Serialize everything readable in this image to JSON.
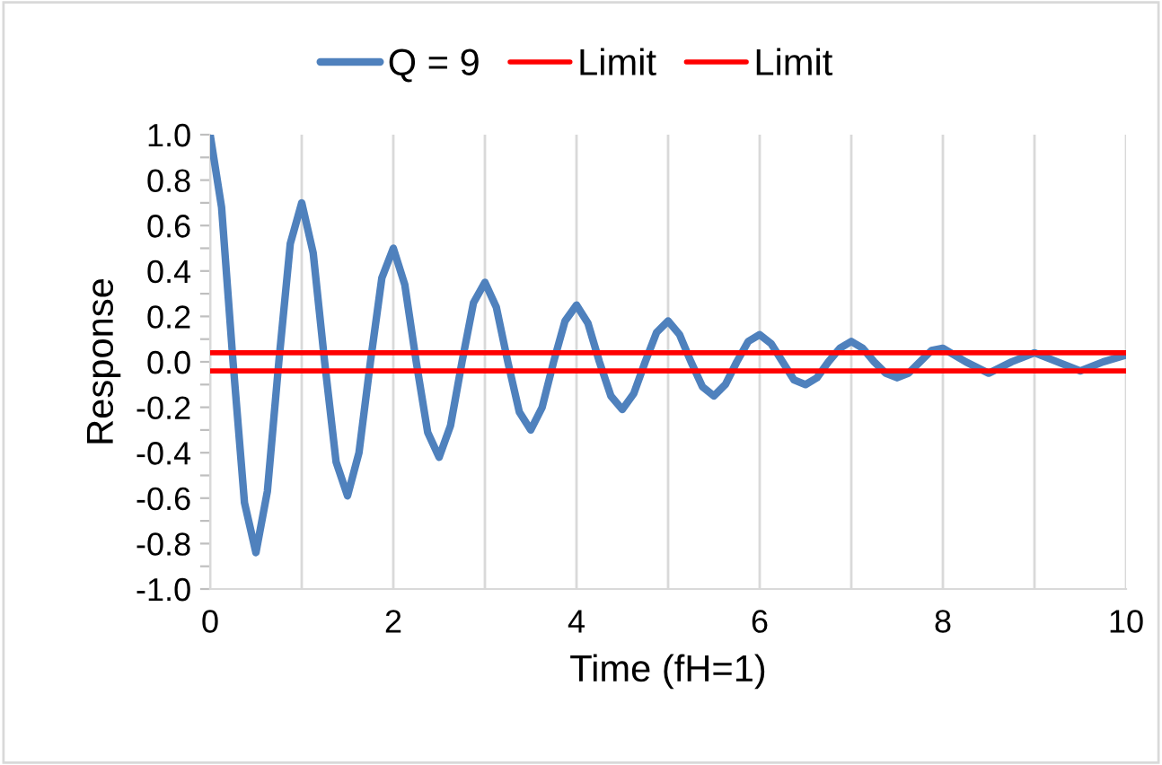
{
  "chart_data": {
    "type": "line",
    "xlabel": "Time (fH=1)",
    "ylabel": "Response",
    "xlim": [
      0,
      10
    ],
    "ylim": [
      -1.0,
      1.0
    ],
    "xticks": [
      0,
      {
        "value": 1,
        "label": null
      },
      2,
      {
        "value": 3,
        "label": null
      },
      4,
      {
        "value": 5,
        "label": null
      },
      6,
      {
        "value": 7,
        "label": null
      },
      8,
      {
        "value": 9,
        "label": null
      },
      10
    ],
    "yticks": [
      {
        "value": -1.0,
        "label": "-1.0"
      },
      {
        "value": -0.9,
        "label": null
      },
      {
        "value": -0.8,
        "label": "-0.8"
      },
      {
        "value": -0.7,
        "label": null
      },
      {
        "value": -0.6,
        "label": "-0.6"
      },
      {
        "value": -0.5,
        "label": null
      },
      {
        "value": -0.4,
        "label": "-0.4"
      },
      {
        "value": -0.3,
        "label": null
      },
      {
        "value": -0.2,
        "label": "-0.2"
      },
      {
        "value": -0.1,
        "label": null
      },
      {
        "value": 0.0,
        "label": "0.0"
      },
      {
        "value": 0.1,
        "label": null
      },
      {
        "value": 0.2,
        "label": "0.2"
      },
      {
        "value": 0.3,
        "label": null
      },
      {
        "value": 0.4,
        "label": "0.4"
      },
      {
        "value": 0.5,
        "label": null
      },
      {
        "value": 0.6,
        "label": "0.6"
      },
      {
        "value": 0.7,
        "label": null
      },
      {
        "value": 0.8,
        "label": "0.8"
      },
      {
        "value": 0.9,
        "label": null
      },
      {
        "value": 1.0,
        "label": "1.0"
      }
    ],
    "grid": "x",
    "legend": "top",
    "marker": "none",
    "line_style": "solid",
    "series": [
      {
        "name": "Q = 9",
        "color": "#4f81bd",
        "x": [
          0,
          0.125,
          0.25,
          0.375,
          0.5,
          0.625,
          0.75,
          0.875,
          1,
          1.125,
          1.25,
          1.375,
          1.5,
          1.625,
          1.75,
          1.875,
          2,
          2.125,
          2.25,
          2.375,
          2.5,
          2.625,
          2.75,
          2.875,
          3,
          3.125,
          3.25,
          3.375,
          3.5,
          3.625,
          3.75,
          3.875,
          4,
          4.125,
          4.25,
          4.375,
          4.5,
          4.625,
          4.75,
          4.875,
          5,
          5.125,
          5.25,
          5.375,
          5.5,
          5.625,
          5.75,
          5.875,
          6,
          6.125,
          6.25,
          6.375,
          6.5,
          6.625,
          6.75,
          6.875,
          7,
          7.125,
          7.25,
          7.375,
          7.5,
          7.625,
          7.75,
          7.875,
          8,
          8.25,
          8.5,
          8.75,
          9,
          9.25,
          9.5,
          9.75,
          10
        ],
        "values": [
          1.0,
          0.68,
          0.0,
          -0.62,
          -0.84,
          -0.57,
          0.0,
          0.52,
          0.7,
          0.48,
          0.0,
          -0.44,
          -0.59,
          -0.4,
          0.0,
          0.37,
          0.5,
          0.34,
          0.0,
          -0.31,
          -0.42,
          -0.28,
          0.0,
          0.26,
          0.35,
          0.24,
          0.0,
          -0.22,
          -0.3,
          -0.2,
          0.0,
          0.18,
          0.25,
          0.17,
          0.0,
          -0.15,
          -0.21,
          -0.14,
          0.0,
          0.13,
          0.18,
          0.12,
          0.0,
          -0.11,
          -0.15,
          -0.1,
          0.0,
          0.09,
          0.12,
          0.08,
          0.0,
          -0.08,
          -0.1,
          -0.07,
          0.0,
          0.06,
          0.09,
          0.06,
          0.0,
          -0.05,
          -0.07,
          -0.05,
          0.0,
          0.05,
          0.06,
          0.0,
          -0.05,
          0.0,
          0.04,
          0.0,
          -0.04,
          0.0,
          0.03
        ]
      },
      {
        "name": "Limit",
        "color": "#ff0000",
        "x": [
          0,
          10
        ],
        "values": [
          0.04,
          0.04
        ]
      },
      {
        "name": "Limit",
        "color": "#ff0000",
        "x": [
          0,
          10
        ],
        "values": [
          -0.04,
          -0.04
        ]
      }
    ]
  }
}
